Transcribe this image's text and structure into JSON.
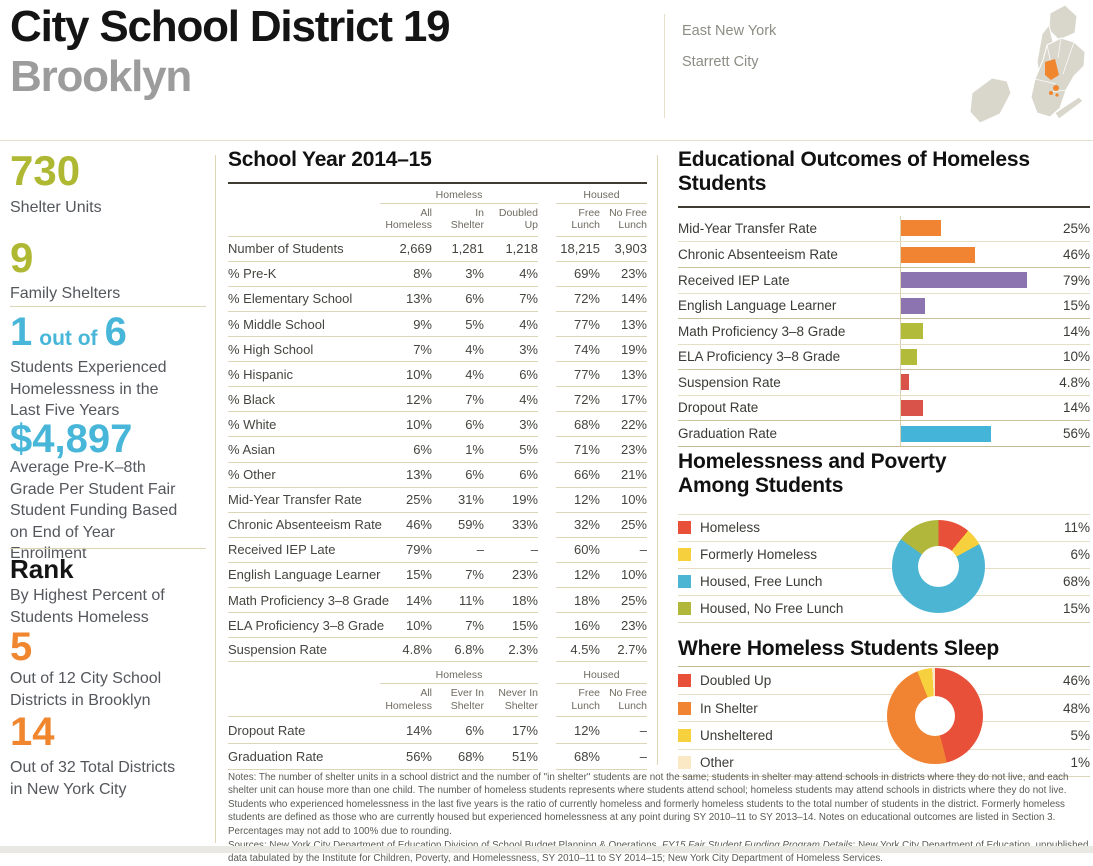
{
  "header": {
    "district": "City School District 19",
    "borough": "Brooklyn",
    "neighborhoods": [
      "East New York",
      "Starrett City"
    ]
  },
  "sidebar": {
    "shelter_units": {
      "value": "730",
      "label": "Shelter Units"
    },
    "family_shelters": {
      "value": "9",
      "label": "Family Shelters"
    },
    "ratio": {
      "num": "1",
      "conn": "out of",
      "den": "6",
      "label": "Students Experienced Homelessness in the Last Five Years"
    },
    "funding": {
      "value": "$4,897",
      "label": "Average Pre-K–8th Grade Per Student Fair Student Funding Based on End of Year Enrollment"
    },
    "rank": {
      "title": "Rank",
      "subtitle": "By Highest Percent of Students Homeless",
      "brooklyn": {
        "value": "5",
        "label": "Out of 12 City School Districts in Brooklyn"
      },
      "nyc": {
        "value": "14",
        "label": "Out of 32 Total Districts in New York City"
      }
    }
  },
  "table": {
    "title": "School Year 2014–15",
    "group_headers": [
      "Homeless",
      "Housed"
    ],
    "columns1": [
      "All\nHomeless",
      "In\nShelter",
      "Doubled\nUp",
      "Free\nLunch",
      "No Free\nLunch"
    ],
    "rows1": [
      {
        "label": "Number of Students",
        "values": [
          "2,669",
          "1,281",
          "1,218",
          "18,215",
          "3,903"
        ]
      },
      {
        "label": "% Pre-K",
        "values": [
          "8%",
          "3%",
          "4%",
          "69%",
          "23%"
        ]
      },
      {
        "label": "% Elementary School",
        "values": [
          "13%",
          "6%",
          "7%",
          "72%",
          "14%"
        ]
      },
      {
        "label": "% Middle School",
        "values": [
          "9%",
          "5%",
          "4%",
          "77%",
          "13%"
        ]
      },
      {
        "label": "% High School",
        "values": [
          "7%",
          "4%",
          "3%",
          "74%",
          "19%"
        ]
      },
      {
        "label": "% Hispanic",
        "values": [
          "10%",
          "4%",
          "6%",
          "77%",
          "13%"
        ]
      },
      {
        "label": "% Black",
        "values": [
          "12%",
          "7%",
          "4%",
          "72%",
          "17%"
        ]
      },
      {
        "label": "% White",
        "values": [
          "10%",
          "6%",
          "3%",
          "68%",
          "22%"
        ]
      },
      {
        "label": "% Asian",
        "values": [
          "6%",
          "1%",
          "5%",
          "71%",
          "23%"
        ]
      },
      {
        "label": "% Other",
        "values": [
          "13%",
          "6%",
          "6%",
          "66%",
          "21%"
        ]
      },
      {
        "label": "Mid-Year Transfer Rate",
        "values": [
          "25%",
          "31%",
          "19%",
          "12%",
          "10%"
        ]
      },
      {
        "label": "Chronic Absenteeism Rate",
        "values": [
          "46%",
          "59%",
          "33%",
          "32%",
          "25%"
        ]
      },
      {
        "label": "Received IEP Late",
        "values": [
          "79%",
          "–",
          "–",
          "60%",
          "–"
        ]
      },
      {
        "label": "English Language Learner",
        "values": [
          "15%",
          "7%",
          "23%",
          "12%",
          "10%"
        ]
      },
      {
        "label": "Math Proficiency 3–8 Grade",
        "values": [
          "14%",
          "11%",
          "18%",
          "18%",
          "25%"
        ]
      },
      {
        "label": "ELA Proficiency 3–8 Grade",
        "values": [
          "10%",
          "7%",
          "15%",
          "16%",
          "23%"
        ]
      },
      {
        "label": "Suspension Rate",
        "values": [
          "4.8%",
          "6.8%",
          "2.3%",
          "4.5%",
          "2.7%"
        ]
      }
    ],
    "columns2": [
      "All\nHomeless",
      "Ever In\nShelter",
      "Never In\nShelter",
      "Free\nLunch",
      "No Free\nLunch"
    ],
    "rows2": [
      {
        "label": "Dropout Rate",
        "values": [
          "14%",
          "6%",
          "17%",
          "12%",
          "–"
        ]
      },
      {
        "label": "Graduation Rate",
        "values": [
          "56%",
          "68%",
          "51%",
          "68%",
          "–"
        ]
      }
    ]
  },
  "chart_data": [
    {
      "type": "bar",
      "orientation": "horizontal",
      "title": "Educational Outcomes of Homeless Students",
      "categories": [
        "Mid-Year Transfer Rate",
        "Chronic Absenteeism Rate",
        "Received IEP Late",
        "English Language Learner",
        "Math Proficiency 3–8 Grade",
        "ELA Proficiency 3–8 Grade",
        "Suspension Rate",
        "Dropout Rate",
        "Graduation Rate"
      ],
      "values": [
        25,
        46,
        79,
        15,
        14,
        10,
        4.8,
        14,
        56
      ],
      "display_values": [
        "25%",
        "46%",
        "79%",
        "15%",
        "14%",
        "10%",
        "4.8%",
        "14%",
        "56%"
      ],
      "colors": [
        "#f08433",
        "#f08433",
        "#8b74b0",
        "#8b74b0",
        "#b3bc3a",
        "#b3bc3a",
        "#d9534a",
        "#d9534a",
        "#44b5d8"
      ],
      "xlim": [
        0,
        100
      ],
      "unit": "%"
    },
    {
      "type": "pie",
      "donut": true,
      "title": "Homelessness and Poverty Among Students",
      "title_lines": [
        "Homelessness and Poverty",
        "Among Students"
      ],
      "labels": [
        "Homeless",
        "Formerly Homeless",
        "Housed, Free Lunch",
        "Housed, No Free Lunch"
      ],
      "values": [
        11,
        6,
        68,
        15
      ],
      "display_values": [
        "11%",
        "6%",
        "68%",
        "15%"
      ],
      "colors": [
        "#e8503a",
        "#f7d03d",
        "#4cb5d4",
        "#b0b73a"
      ]
    },
    {
      "type": "pie",
      "donut": true,
      "title": "Where Homeless Students Sleep",
      "title_lines": [
        "Where Homeless Students Sleep"
      ],
      "labels": [
        "Doubled Up",
        "In Shelter",
        "Unsheltered",
        "Other"
      ],
      "values": [
        46,
        48,
        5,
        1
      ],
      "display_values": [
        "46%",
        "48%",
        "5%",
        "1%"
      ],
      "colors": [
        "#e8503a",
        "#f08433",
        "#f7d03d",
        "#fae9c4"
      ]
    }
  ],
  "notes": {
    "text": "Notes: The number of shelter units in a school district and the number of \"in shelter\" students are not the same; students in shelter may attend schools in districts where they do not live, and each shelter unit can house more than one child. The number of homeless students represents where students attend school; homeless students may attend schools in districts where they do not live. Students who experienced homelessness in the last five years is the ratio of currently homeless and formerly homeless students to the total number of students in the district. Formerly homeless students are defined as those who are currently housed but experienced homelessness at any point during SY 2010–11 to SY 2013–14. Notes on educational outcomes are listed in Section 3. Percentages may not add to 100% due to rounding.",
    "sources_pre": "Sources: New York City Department of Education Division of School Budget Planning & Operations, ",
    "sources_italic": "FY15 Fair Student Funding Program Details",
    "sources_post": "; New York City Department of Education, unpublished data tabulated by the Institute for Children, Poverty, and Homelessness, SY 2010–11 to SY 2014–15; New York City Department of Homeless Services."
  },
  "palette": {
    "olive": "#afb832",
    "blue": "#47b6d8",
    "orange": "#f0862e",
    "map_land": "#d9d6cb",
    "map_highlight": "#f0862e",
    "rule_light": "#ddd6b6",
    "rule_dark": "#3e3c30"
  }
}
